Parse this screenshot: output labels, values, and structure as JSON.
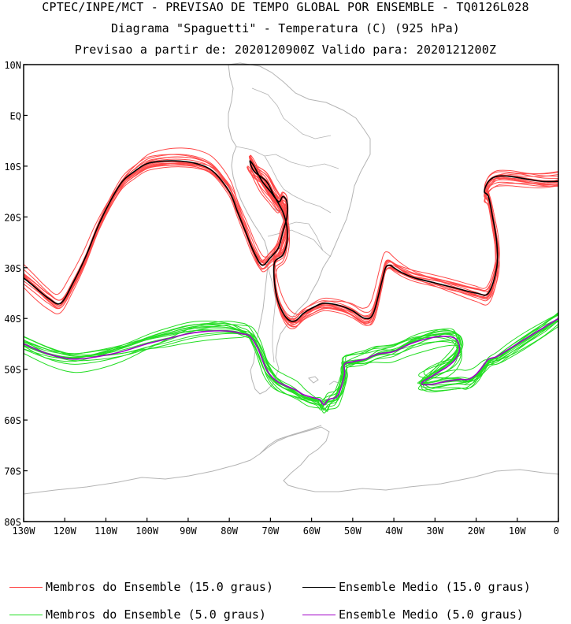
{
  "header": {
    "line1": "CPTEC/INPE/MCT - PREVISAO DE TEMPO GLOBAL POR ENSEMBLE - TQ0126L028",
    "line2": "Diagrama \"Spaguetti\" - Temperatura (C) (925 hPa)",
    "line3": "Previsao a partir de: 2020120900Z  Valido para: 2020121200Z"
  },
  "axes": {
    "lat_labels": [
      "10N",
      "EQ",
      "10S",
      "20S",
      "30S",
      "40S",
      "50S",
      "60S",
      "70S",
      "80S"
    ],
    "lon_labels": [
      "130W",
      "120W",
      "110W",
      "100W",
      "90W",
      "80W",
      "70W",
      "60W",
      "50W",
      "40W",
      "30W",
      "20W",
      "10W",
      "0"
    ],
    "lon_range": [
      -130,
      0
    ],
    "lat_range": [
      -80,
      10
    ]
  },
  "colors": {
    "member_15": "#ff4a4a",
    "mean_15": "#000000",
    "member_5": "#22dd22",
    "mean_5": "#a000c8",
    "coast": "#b4b4b4"
  },
  "legend": {
    "items": [
      {
        "label": "Membros do Ensemble (15.0 graus)",
        "color": "#ff4a4a"
      },
      {
        "label": "Ensemble Medio (15.0 graus)",
        "color": "#000000"
      },
      {
        "label": "Membros do Ensemble (5.0 graus)",
        "color": "#22dd22"
      },
      {
        "label": "Ensemble Medio (5.0 graus)",
        "color": "#a000c8"
      }
    ]
  },
  "chart_data": {
    "type": "line",
    "xlabel": "",
    "ylabel": "",
    "xlim": [
      -130,
      0
    ],
    "ylim": [
      -80,
      10
    ],
    "series": [
      {
        "name": "Ensemble Medio (15.0 graus)",
        "x": [
          -130,
          -127,
          -124,
          -121,
          -118,
          -115,
          -112,
          -109,
          -106,
          -103,
          -100,
          -96,
          -92,
          -88,
          -84,
          -80,
          -78,
          -76,
          -74,
          -72,
          -70,
          -68,
          -67,
          -66,
          -66,
          -67,
          -68,
          -70,
          -72,
          -74,
          -75,
          -74,
          -71,
          -69,
          -67,
          -66,
          -66,
          -67,
          -69,
          -69,
          -68,
          -66,
          -64,
          -62,
          -60,
          -57,
          -53,
          -50,
          -47,
          -45,
          -43,
          -42,
          -41,
          -40,
          -38,
          -35,
          -30,
          -25,
          -20,
          -17,
          -15,
          -15,
          -16,
          -17,
          -18,
          -17,
          -15,
          -12,
          -8,
          -4,
          0
        ],
        "y": [
          -32,
          -34,
          -36,
          -37,
          -33,
          -28,
          -22,
          -17,
          -13,
          -11,
          -9.5,
          -9,
          -9,
          -9.5,
          -11,
          -15,
          -19,
          -23,
          -27,
          -29.5,
          -28,
          -26,
          -23,
          -20,
          -17,
          -16,
          -17,
          -15,
          -13,
          -10,
          -9,
          -11,
          -13,
          -16,
          -19,
          -22,
          -25,
          -27.5,
          -29,
          -33,
          -37,
          -40,
          -40.5,
          -39,
          -38,
          -37,
          -37.5,
          -38.5,
          -40,
          -39,
          -33,
          -30,
          -29.5,
          -30,
          -31,
          -32,
          -33,
          -34,
          -35,
          -35,
          -30,
          -25,
          -20,
          -16,
          -15,
          -13,
          -12,
          -12,
          -12.5,
          -13,
          -13
        ]
      },
      {
        "name": "Ensemble Medio (5.0 graus)",
        "x": [
          -130,
          -124,
          -118,
          -112,
          -106,
          -100,
          -95,
          -90,
          -85,
          -80,
          -77,
          -75,
          -73,
          -71,
          -69,
          -67,
          -64,
          -62,
          -60,
          -58,
          -57,
          -56,
          -54,
          -53,
          -52,
          -52,
          -50,
          -47,
          -44,
          -40,
          -36,
          -32,
          -28,
          -25,
          -24,
          -25,
          -27,
          -29,
          -31,
          -33,
          -33,
          -31,
          -28,
          -24,
          -22,
          -20,
          -18,
          -17,
          -15,
          -12,
          -8,
          -4,
          0
        ],
        "y": [
          -45,
          -47,
          -48,
          -47.5,
          -46.5,
          -45,
          -44,
          -43,
          -42.5,
          -42.5,
          -43,
          -43.5,
          -46,
          -50,
          -52,
          -53,
          -54,
          -55,
          -55.5,
          -56,
          -57,
          -56,
          -55.5,
          -54,
          -51,
          -49,
          -48.5,
          -48,
          -47,
          -46.5,
          -45,
          -44,
          -43.5,
          -44,
          -46,
          -48,
          -49.5,
          -50.5,
          -51.5,
          -52.5,
          -53,
          -53,
          -52.5,
          -52,
          -52,
          -51,
          -49,
          -48,
          -47.5,
          -46,
          -44,
          -42,
          -40
        ]
      }
    ]
  }
}
